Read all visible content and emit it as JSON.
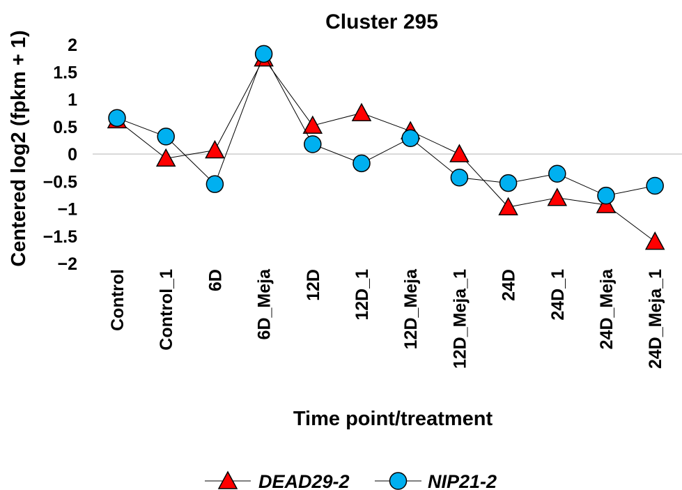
{
  "chart_data": {
    "type": "line",
    "title": "Cluster 295",
    "xlabel": "Time point/treatment",
    "ylabel": "Centered log2 (fpkm + 1)",
    "ylim": [
      -2,
      2
    ],
    "yticks": [
      2,
      1.5,
      1,
      0.5,
      0,
      -0.5,
      -1,
      -1.5,
      -2
    ],
    "ytick_labels": [
      "2",
      "1.5",
      "1",
      "0.5",
      "0",
      "−0.5",
      "−1",
      "−1.5",
      "−2"
    ],
    "grid": false,
    "zero_line": true,
    "legend_position": "bottom",
    "categories": [
      "Control",
      "Control_1",
      "6D",
      "6D_Meja",
      "12D",
      "12D_1",
      "12D_Meja",
      "12D_Meja_1",
      "24D",
      "24D_1",
      "24D_Meja",
      "24D_Meja_1"
    ],
    "series": [
      {
        "name": "DEAD29-2",
        "marker": "triangle",
        "color": "#ff0000",
        "values": [
          0.62,
          -0.08,
          0.07,
          1.75,
          0.52,
          0.75,
          0.42,
          0.0,
          -0.97,
          -0.8,
          -0.93,
          -1.6
        ]
      },
      {
        "name": "NIP21-2",
        "marker": "circle",
        "color": "#00b0f0",
        "values": [
          0.66,
          0.32,
          -0.55,
          1.83,
          0.18,
          -0.17,
          0.29,
          -0.43,
          -0.53,
          -0.36,
          -0.76,
          -0.58
        ]
      }
    ]
  }
}
